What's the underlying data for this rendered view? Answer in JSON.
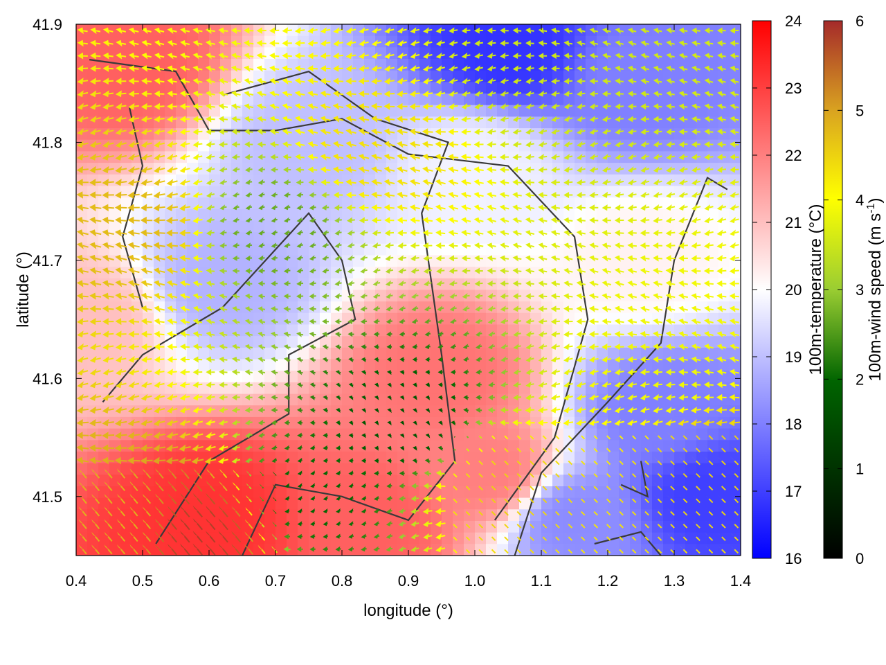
{
  "chart_data": {
    "type": "heatmap",
    "title": "",
    "xlabel": "longitude (°)",
    "ylabel": "latitude (°)",
    "xlim": [
      0.4,
      1.4
    ],
    "ylim": [
      41.45,
      41.9
    ],
    "x_ticks": [
      "0.4",
      "0.5",
      "0.6",
      "0.7",
      "0.8",
      "0.9",
      "1.0",
      "1.1",
      "1.2",
      "1.3",
      "1.4"
    ],
    "y_ticks": [
      "41.5",
      "41.6",
      "41.7",
      "41.8",
      "41.9"
    ],
    "colorbars": [
      {
        "label": "100m-temperature (°C)",
        "range": [
          16,
          24
        ],
        "ticks": [
          "16",
          "17",
          "18",
          "19",
          "20",
          "21",
          "22",
          "23",
          "24"
        ],
        "colors": [
          "#0000ff",
          "#ffffff",
          "#ff0000"
        ]
      },
      {
        "label": "100m-wind speed (m s",
        "label_sup": "-1",
        "label_end": ")",
        "range": [
          0,
          6
        ],
        "ticks": [
          "0",
          "1",
          "2",
          "3",
          "4",
          "5",
          "6"
        ],
        "colors": [
          "#000000",
          "#006400",
          "#9acd32",
          "#ffff00",
          "#daa520",
          "#a52a2a"
        ]
      }
    ],
    "temperature_features": [
      {
        "lon": 0.48,
        "lat": 41.87,
        "temp": 22.5
      },
      {
        "lon": 1.05,
        "lat": 41.88,
        "temp": 16.8
      },
      {
        "lon": 1.25,
        "lat": 41.85,
        "temp": 18.0
      },
      {
        "lon": 0.75,
        "lat": 41.8,
        "temp": 19.0
      },
      {
        "lon": 1.0,
        "lat": 41.78,
        "temp": 19.8
      },
      {
        "lon": 0.62,
        "lat": 41.68,
        "temp": 18.8
      },
      {
        "lon": 0.42,
        "lat": 41.65,
        "temp": 21.0
      },
      {
        "lon": 0.95,
        "lat": 41.6,
        "temp": 22.2
      },
      {
        "lon": 1.02,
        "lat": 41.52,
        "temp": 22.0
      },
      {
        "lon": 0.6,
        "lat": 41.48,
        "temp": 23.2
      },
      {
        "lon": 0.85,
        "lat": 41.48,
        "temp": 22.5
      },
      {
        "lon": 1.28,
        "lat": 41.57,
        "temp": 18.0
      },
      {
        "lon": 1.35,
        "lat": 41.5,
        "temp": 17.0
      },
      {
        "lon": 1.15,
        "lat": 41.48,
        "temp": 18.2
      },
      {
        "lon": 1.25,
        "lat": 41.7,
        "temp": 20.2
      }
    ],
    "wind_features": [
      {
        "lon": 0.48,
        "lat": 41.73,
        "speed": 4.5
      },
      {
        "lon": 0.85,
        "lat": 41.79,
        "speed": 4.0
      },
      {
        "lon": 0.7,
        "lat": 41.73,
        "speed": 2.0
      },
      {
        "lon": 0.58,
        "lat": 41.47,
        "speed": 5.8
      },
      {
        "lon": 0.47,
        "lat": 41.48,
        "speed": 4.6
      },
      {
        "lon": 1.03,
        "lat": 41.51,
        "speed": 4.2
      },
      {
        "lon": 1.35,
        "lat": 41.54,
        "speed": 4.2
      },
      {
        "lon": 1.3,
        "lat": 41.6,
        "speed": 3.4
      },
      {
        "lon": 1.1,
        "lat": 41.85,
        "speed": 3.0
      },
      {
        "lon": 0.9,
        "lat": 41.56,
        "speed": 1.0
      },
      {
        "lon": 0.75,
        "lat": 41.5,
        "speed": 1.2
      }
    ],
    "topography_contours": [
      [
        [
          0.42,
          41.87
        ],
        [
          0.55,
          41.86
        ],
        [
          0.6,
          41.81
        ],
        [
          0.7,
          41.81
        ],
        [
          0.8,
          41.82
        ],
        [
          0.9,
          41.79
        ],
        [
          1.05,
          41.78
        ],
        [
          1.15,
          41.72
        ],
        [
          1.17,
          41.65
        ],
        [
          1.12,
          41.55
        ],
        [
          1.03,
          41.48
        ]
      ],
      [
        [
          0.5,
          41.66
        ],
        [
          0.47,
          41.72
        ],
        [
          0.5,
          41.78
        ],
        [
          0.48,
          41.83
        ]
      ],
      [
        [
          0.44,
          41.58
        ],
        [
          0.5,
          41.62
        ],
        [
          0.62,
          41.66
        ],
        [
          0.75,
          41.74
        ],
        [
          0.8,
          41.7
        ],
        [
          0.82,
          41.65
        ],
        [
          0.72,
          41.62
        ],
        [
          0.72,
          41.57
        ],
        [
          0.6,
          41.53
        ],
        [
          0.52,
          41.46
        ]
      ],
      [
        [
          0.65,
          41.45
        ],
        [
          0.7,
          41.51
        ],
        [
          0.8,
          41.5
        ],
        [
          0.9,
          41.48
        ],
        [
          0.97,
          41.53
        ],
        [
          0.95,
          41.62
        ],
        [
          0.92,
          41.74
        ],
        [
          0.96,
          41.8
        ],
        [
          0.85,
          41.82
        ],
        [
          0.75,
          41.86
        ],
        [
          0.62,
          41.84
        ]
      ],
      [
        [
          1.06,
          41.45
        ],
        [
          1.1,
          41.52
        ],
        [
          1.2,
          41.58
        ],
        [
          1.28,
          41.63
        ],
        [
          1.3,
          41.7
        ],
        [
          1.35,
          41.77
        ],
        [
          1.38,
          41.76
        ]
      ],
      [
        [
          1.18,
          41.46
        ],
        [
          1.25,
          41.47
        ],
        [
          1.28,
          41.45
        ]
      ],
      [
        [
          1.22,
          41.51
        ],
        [
          1.26,
          41.5
        ],
        [
          1.25,
          41.53
        ]
      ]
    ]
  }
}
